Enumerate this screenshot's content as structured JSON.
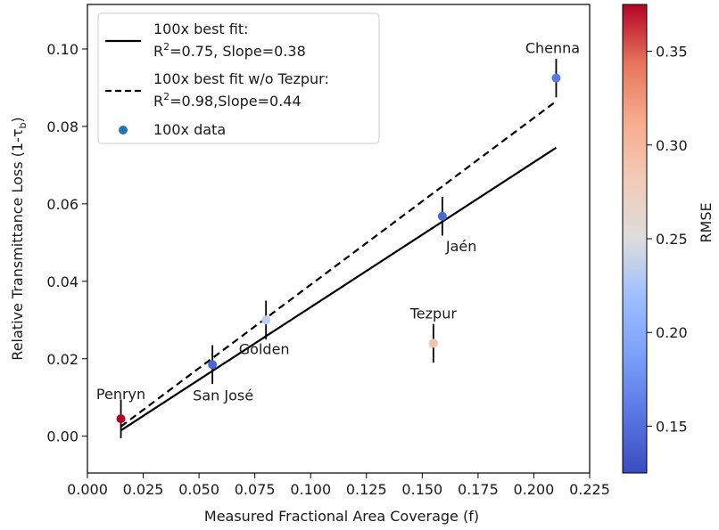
{
  "chart_data": {
    "type": "scatter",
    "xlabel": "Measured Fractional Area Coverage (f)",
    "ylabel": "Relative Transmittance Loss (1-τ",
    "ylabel_sub": "b",
    "ylabel_close": ")",
    "xlim": [
      0.0,
      0.225
    ],
    "ylim": [
      -0.0095,
      0.1115
    ],
    "xticks": [
      0.0,
      0.025,
      0.05,
      0.075,
      0.1,
      0.125,
      0.15,
      0.175,
      0.2,
      0.225
    ],
    "xtick_labels": [
      "0.000",
      "0.025",
      "0.050",
      "0.075",
      "0.100",
      "0.125",
      "0.150",
      "0.175",
      "0.200",
      "0.225"
    ],
    "yticks": [
      0.0,
      0.02,
      0.04,
      0.06,
      0.08,
      0.1
    ],
    "ytick_labels": [
      "0.00",
      "0.02",
      "0.04",
      "0.06",
      "0.08",
      "0.10"
    ],
    "grid": false,
    "legend_position": "top-left",
    "points": [
      {
        "label": "Penryn",
        "x": 0.015,
        "y": 0.0045,
        "yerr": 0.005,
        "rmse": 0.37,
        "color": "#b40426"
      },
      {
        "label": "San José",
        "x": 0.056,
        "y": 0.0185,
        "yerr": 0.005,
        "rmse": 0.15,
        "color": "#4a67d9"
      },
      {
        "label": "Golden",
        "x": 0.08,
        "y": 0.03,
        "yerr": 0.005,
        "rmse": 0.23,
        "color": "#c0d0f0"
      },
      {
        "label": "Tezpur",
        "x": 0.155,
        "y": 0.024,
        "yerr": 0.005,
        "rmse": 0.285,
        "color": "#f2c4ab"
      },
      {
        "label": "Jaén",
        "x": 0.159,
        "y": 0.0568,
        "yerr": 0.005,
        "rmse": 0.15,
        "color": "#4a67d9"
      },
      {
        "label": "Chenna",
        "x": 0.21,
        "y": 0.0925,
        "yerr": 0.005,
        "rmse": 0.16,
        "color": "#5a78e2"
      }
    ],
    "lines": [
      {
        "name_line1": "100x best fit:",
        "name_line2_prefix": "R",
        "name_line2_sup": "2",
        "name_line2_suffix": "=0.75, Slope=0.38",
        "style": "solid",
        "x": [
          0.015,
          0.21
        ],
        "y": [
          0.0015,
          0.0745
        ]
      },
      {
        "name_line1": "100x best fit w/o Tezpur:",
        "name_line2_prefix": "R",
        "name_line2_sup": "2",
        "name_line2_suffix": "=0.98,Slope=0.44",
        "style": "dashed",
        "x": [
          0.015,
          0.21
        ],
        "y": [
          0.0025,
          0.0865
        ]
      }
    ],
    "scatter_legend": "100x data",
    "scatter_legend_color": "#1f77b4",
    "colorbar": {
      "label": "RMSE",
      "min": 0.125,
      "max": 0.375,
      "ticks": [
        0.15,
        0.2,
        0.25,
        0.3,
        0.35
      ],
      "tick_labels": [
        "0.15",
        "0.20",
        "0.25",
        "0.30",
        "0.35"
      ],
      "colormap": "coolwarm",
      "color_low": "#3b4cc0",
      "color_mid": "#dddddd",
      "color_high": "#b40426"
    }
  }
}
